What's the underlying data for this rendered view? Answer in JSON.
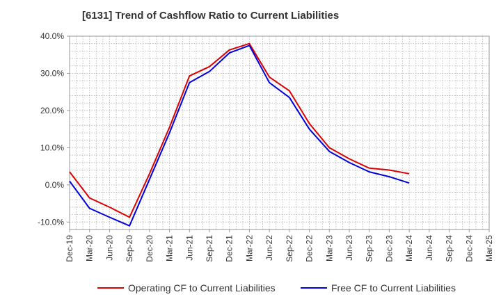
{
  "chart_data": {
    "type": "line",
    "title": "[6131]  Trend of Cashflow Ratio to Current Liabilities",
    "xlabel": "",
    "ylabel": "",
    "ylim": [
      -12,
      40
    ],
    "yticks": [
      {
        "value": 40,
        "label": "40.0%"
      },
      {
        "value": 30,
        "label": "30.0%"
      },
      {
        "value": 20,
        "label": "20.0%"
      },
      {
        "value": 10,
        "label": "10.0%"
      },
      {
        "value": 0,
        "label": "0.0%"
      },
      {
        "value": -10,
        "label": "-10.0%"
      }
    ],
    "x": [
      "Dec-19",
      "Mar-20",
      "Jun-20",
      "Sep-20",
      "Dec-20",
      "Mar-21",
      "Jun-21",
      "Sep-21",
      "Dec-21",
      "Mar-22",
      "Jun-22",
      "Sep-22",
      "Dec-22",
      "Mar-23",
      "Jun-23",
      "Sep-23",
      "Dec-23",
      "Mar-24",
      "Jun-24",
      "Sep-24",
      "Dec-24",
      "Mar-25"
    ],
    "grid": true,
    "legend_position": "bottom",
    "series": [
      {
        "name": "Operating CF to Current Liabilities",
        "color": "#dd0000",
        "values": [
          3.5,
          -3.5,
          -6.0,
          -8.7,
          3.0,
          15.5,
          29.3,
          31.8,
          36.3,
          38.0,
          29.0,
          25.3,
          16.5,
          10.0,
          7.0,
          4.5,
          4.0,
          3.0,
          null,
          null,
          null,
          null
        ]
      },
      {
        "name": "Free CF to Current Liabilities",
        "color": "#0000dd",
        "values": [
          1.0,
          -6.3,
          -8.7,
          -11.0,
          1.5,
          14.0,
          27.5,
          30.5,
          35.5,
          37.5,
          27.5,
          23.5,
          15.0,
          9.0,
          6.0,
          3.5,
          2.2,
          0.5,
          null,
          null,
          null,
          null
        ]
      }
    ]
  }
}
